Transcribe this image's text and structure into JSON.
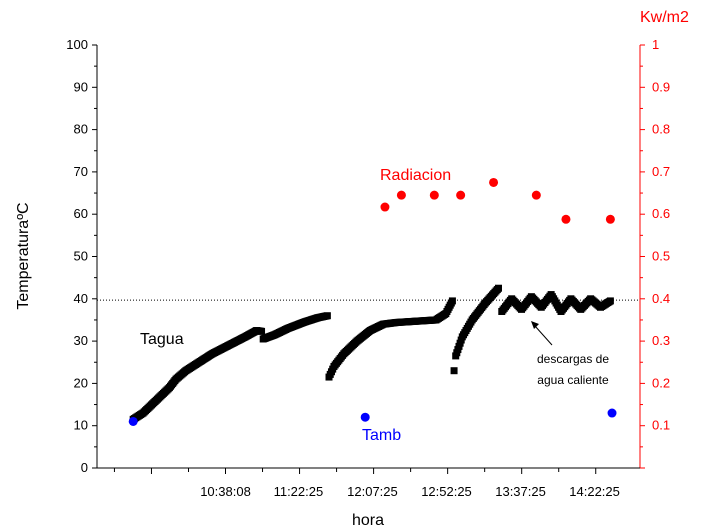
{
  "chart_data": {
    "type": "scatter",
    "xlabel": "hora",
    "ylabel": "TemperaturaºC",
    "ylabel_right": "Kw/m2",
    "ylim": [
      0,
      100
    ],
    "ylim_right": [
      0,
      1
    ],
    "yticks": [
      "0",
      "10",
      "20",
      "30",
      "40",
      "50",
      "60",
      "70",
      "80",
      "90",
      "100"
    ],
    "yticks_right": [
      "0.1",
      "0.2",
      "0.3",
      "0.4",
      "0.5",
      "0.6",
      "0.7",
      "0.8",
      "0.9",
      "1"
    ],
    "x_tick_labels": [
      "10:38:08",
      "11:22:25",
      "12:07:25",
      "12:52:25",
      "13:37:25",
      "14:22:25"
    ],
    "x_tick_minutes": [
      638.1,
      682.4,
      727.4,
      772.4,
      817.4,
      862.4
    ],
    "xlim_minutes": [
      560,
      890
    ],
    "reference_line_y": 39.7,
    "colors": {
      "tagua": "#000000",
      "tamb": "#0000ff",
      "radiacion": "#ff0000",
      "right_axis": "#ff0000"
    },
    "series": [
      {
        "name": "Tagua",
        "marker": "square",
        "segments": [
          [
            [
              582,
              11.5
            ],
            [
              588,
              13
            ],
            [
              596,
              16
            ],
            [
              604,
              19
            ],
            [
              608,
              21
            ],
            [
              614,
              23
            ],
            [
              622,
              25
            ],
            [
              630,
              27
            ],
            [
              640,
              29
            ],
            [
              650,
              31
            ],
            [
              657,
              32.5
            ],
            [
              660,
              32.3
            ]
          ],
          [
            [
              661,
              30.5
            ],
            [
              668,
              31.5
            ],
            [
              676,
              33
            ],
            [
              686,
              34.5
            ],
            [
              694,
              35.5
            ],
            [
              700,
              36
            ]
          ],
          [
            [
              701,
              21.5
            ],
            [
              704,
              24
            ],
            [
              710,
              27
            ],
            [
              718,
              30
            ],
            [
              726,
              32.5
            ],
            [
              734,
              34
            ],
            [
              742,
              34.4
            ],
            [
              750,
              34.6
            ],
            [
              758,
              34.8
            ],
            [
              766,
              35
            ],
            [
              772,
              36.5
            ],
            [
              776,
              39.5
            ]
          ],
          [
            [
              777,
              23
            ],
            [
              778,
              26.5
            ],
            [
              782,
              31
            ],
            [
              788,
              35
            ],
            [
              796,
              39
            ],
            [
              804,
              42.5
            ]
          ],
          [
            [
              806,
              37
            ],
            [
              812,
              40
            ],
            [
              818,
              37.5
            ],
            [
              824,
              40.5
            ],
            [
              830,
              38
            ],
            [
              836,
              41
            ],
            [
              842,
              37
            ],
            [
              848,
              40
            ],
            [
              854,
              37.5
            ],
            [
              860,
              40
            ],
            [
              866,
              38
            ],
            [
              872,
              39.5
            ]
          ]
        ]
      },
      {
        "name": "Tamb",
        "marker": "circle",
        "points": [
          [
            582,
            11
          ],
          [
            723,
            12
          ],
          [
            873,
            13
          ]
        ]
      },
      {
        "name": "Radiacion",
        "axis": "right",
        "marker": "circle",
        "points": [
          [
            735,
            0.617
          ],
          [
            745,
            0.645
          ],
          [
            765,
            0.645
          ],
          [
            781,
            0.645
          ],
          [
            801,
            0.675
          ],
          [
            827,
            0.645
          ],
          [
            845,
            0.588
          ],
          [
            872,
            0.588
          ]
        ]
      }
    ],
    "annotations": {
      "tagua": "Tagua",
      "tamb": "Tamb",
      "radiacion": "Radiacion",
      "note_line1": "descargas de",
      "note_line2": "agua caliente"
    }
  }
}
